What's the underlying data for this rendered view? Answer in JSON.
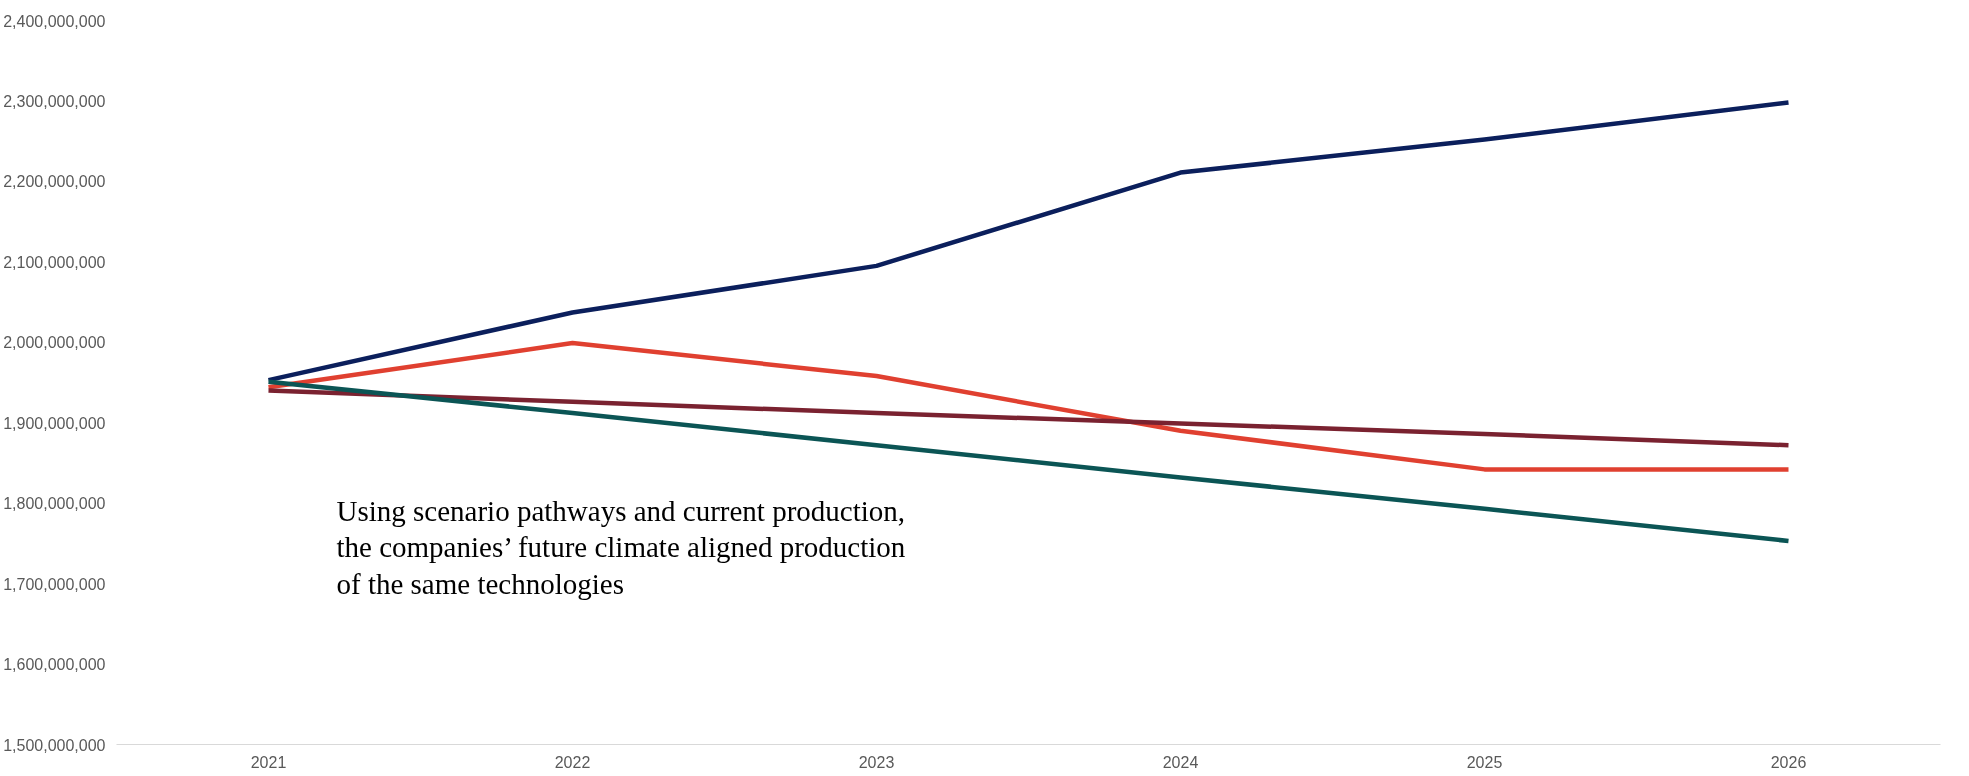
{
  "chart_data": {
    "type": "line",
    "categories": [
      "2021",
      "2022",
      "2023",
      "2024",
      "2025",
      "2026"
    ],
    "series": [
      {
        "color": "#0b1f5c",
        "values": [
          1953000000,
          2037000000,
          2095000000,
          2211000000,
          2252000000,
          2298000000
        ]
      },
      {
        "color": "#e04030",
        "values": [
          1944000000,
          1999000000,
          1958000000,
          1890000000,
          1842000000,
          1842000000
        ]
      },
      {
        "color": "#7a2230",
        "values": [
          1940000000,
          1926000000,
          1912000000,
          1899000000,
          1886000000,
          1872000000
        ]
      },
      {
        "color": "#0b5555",
        "values": [
          1951000000,
          1912000000,
          1872000000,
          1832000000,
          1793000000,
          1753000000
        ]
      }
    ],
    "ylim": [
      1500000000,
      2400000000
    ],
    "yticks": [
      {
        "value": 1500000000,
        "label": "1,500,000,000"
      },
      {
        "value": 1600000000,
        "label": "1,600,000,000"
      },
      {
        "value": 1700000000,
        "label": "1,700,000,000"
      },
      {
        "value": 1800000000,
        "label": "1,800,000,000"
      },
      {
        "value": 1900000000,
        "label": "1,900,000,000"
      },
      {
        "value": 2000000000,
        "label": "2,000,000,000"
      },
      {
        "value": 2100000000,
        "label": "2,100,000,000"
      },
      {
        "value": 2200000000,
        "label": "2,200,000,000"
      },
      {
        "value": 2300000000,
        "label": "2,300,000,000"
      },
      {
        "value": 2400000000,
        "label": "2,400,000,000"
      }
    ],
    "annotations": [
      "Using scenario pathways and current production,\nthe companies’ future climate aligned production\nof the same technologies"
    ],
    "grid": false,
    "marker": "none",
    "line_style": "solid"
  }
}
